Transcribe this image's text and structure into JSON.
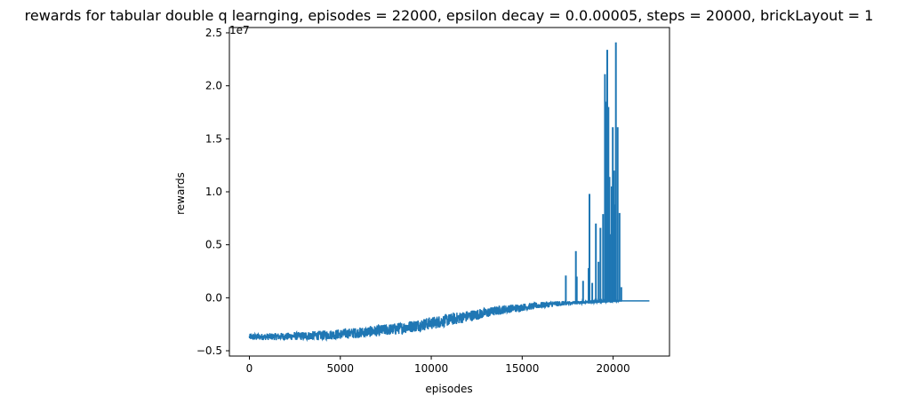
{
  "chart_data": {
    "type": "line",
    "title": "rewards for tabular double q learnging, episodes = 22000, epsilon decay = 0.0.00005, steps = 20000, brickLayout = 1",
    "xlabel": "episodes",
    "ylabel": "rewards",
    "y_offset_label": "1e7",
    "xlim": [
      -1100,
      23100
    ],
    "ylim": [
      -0.55,
      2.55
    ],
    "xticks": [
      0,
      5000,
      10000,
      15000,
      20000
    ],
    "xtick_labels": [
      "0",
      "5000",
      "10000",
      "15000",
      "20000"
    ],
    "yticks": [
      -0.5,
      0.0,
      0.5,
      1.0,
      1.5,
      2.0,
      2.5
    ],
    "ytick_labels": [
      "−0.5",
      "0.0",
      "0.5",
      "1.0",
      "1.5",
      "2.0",
      "2.5"
    ],
    "grid": false,
    "color": "#1f77b4",
    "series": [
      {
        "x": [
          0,
          2000,
          4000,
          6000,
          8000,
          10000,
          12000,
          14000,
          16000,
          17000,
          18000,
          19000,
          20000,
          20500,
          22000
        ],
        "y_low": [
          -0.4,
          -0.4,
          -0.4,
          -0.38,
          -0.35,
          -0.3,
          -0.23,
          -0.15,
          -0.1,
          -0.08,
          -0.06,
          -0.05,
          -0.04,
          -0.03,
          -0.03
        ],
        "y_high": [
          -0.34,
          -0.33,
          -0.31,
          -0.28,
          -0.24,
          -0.18,
          -0.12,
          -0.07,
          -0.04,
          -0.03,
          -0.03,
          -0.02,
          -0.02,
          -0.03,
          -0.03
        ]
      }
    ],
    "spikes": [
      {
        "x": 17400,
        "y": 0.21
      },
      {
        "x": 17950,
        "y": 0.44
      },
      {
        "x": 18000,
        "y": 0.2
      },
      {
        "x": 18350,
        "y": 0.16
      },
      {
        "x": 18650,
        "y": 0.28
      },
      {
        "x": 18700,
        "y": 0.98
      },
      {
        "x": 18850,
        "y": 0.14
      },
      {
        "x": 19050,
        "y": 0.7
      },
      {
        "x": 19200,
        "y": 0.34
      },
      {
        "x": 19300,
        "y": 0.66
      },
      {
        "x": 19450,
        "y": 0.79
      },
      {
        "x": 19550,
        "y": 2.11
      },
      {
        "x": 19620,
        "y": 1.85
      },
      {
        "x": 19680,
        "y": 2.34
      },
      {
        "x": 19740,
        "y": 1.8
      },
      {
        "x": 19800,
        "y": 1.14
      },
      {
        "x": 19860,
        "y": 0.6
      },
      {
        "x": 19920,
        "y": 1.05
      },
      {
        "x": 19980,
        "y": 1.61
      },
      {
        "x": 20050,
        "y": 1.2
      },
      {
        "x": 20100,
        "y": 0.88
      },
      {
        "x": 20150,
        "y": 2.41
      },
      {
        "x": 20250,
        "y": 1.61
      },
      {
        "x": 20350,
        "y": 0.8
      },
      {
        "x": 20450,
        "y": 0.1
      }
    ]
  }
}
